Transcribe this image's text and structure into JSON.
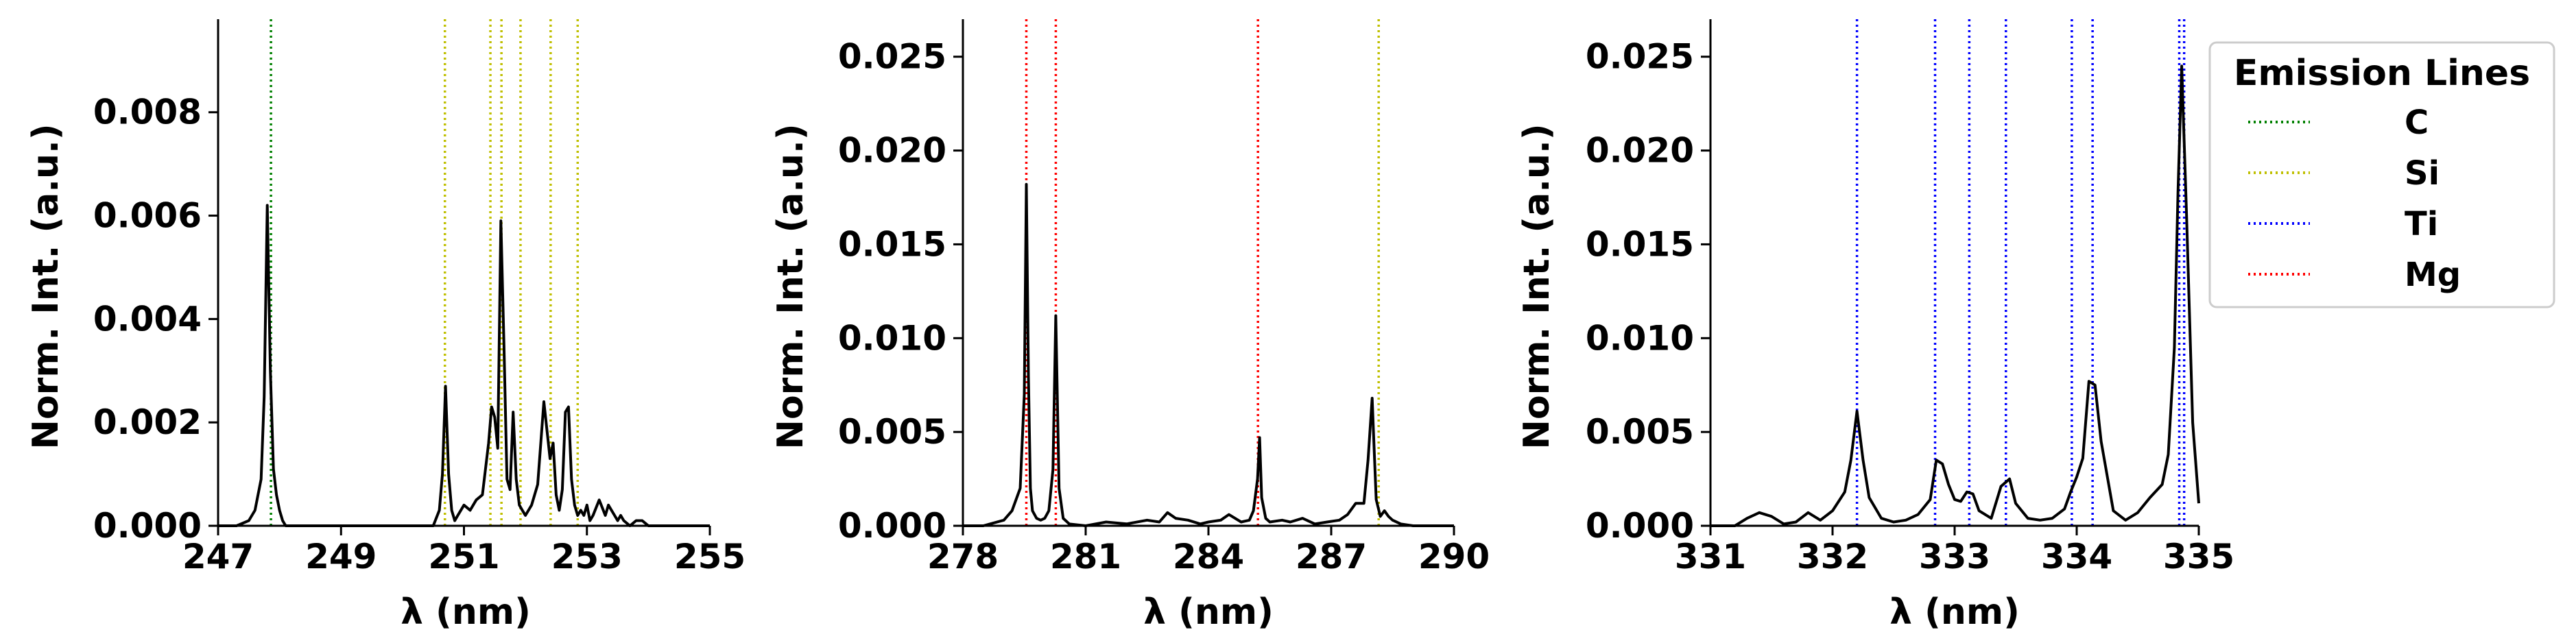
{
  "chart_data": [
    {
      "type": "line",
      "xlabel": "λ (nm)",
      "ylabel": "Norm. Int. (a.u.)",
      "xlim": [
        247,
        255
      ],
      "ylim": [
        0,
        0.0098
      ],
      "xticks": [
        "247",
        "249",
        "251",
        "253",
        "255"
      ],
      "yticks": [
        "0.000",
        "0.002",
        "0.004",
        "0.006",
        "0.008"
      ],
      "series": [
        {
          "x": [
            247.0,
            247.3,
            247.5,
            247.6,
            247.7,
            247.75,
            247.8,
            247.85,
            247.9,
            247.95,
            248.0,
            248.05,
            248.1,
            248.2,
            248.3,
            248.5,
            249.0,
            249.5,
            250.0,
            250.5,
            250.6,
            250.65,
            250.7,
            250.75,
            250.8,
            250.85,
            250.9,
            251.0,
            251.1,
            251.2,
            251.3,
            251.4,
            251.45,
            251.5,
            251.55,
            251.6,
            251.65,
            251.7,
            251.75,
            251.8,
            251.85,
            251.9,
            251.95,
            252.0,
            252.05,
            252.1,
            252.2,
            252.3,
            252.4,
            252.45,
            252.5,
            252.55,
            252.6,
            252.65,
            252.7,
            252.75,
            252.8,
            252.85,
            252.9,
            252.95,
            253.0,
            253.05,
            253.1,
            253.2,
            253.3,
            253.35,
            253.4,
            253.45,
            253.5,
            253.55,
            253.6,
            253.7,
            253.8,
            253.9,
            254.0,
            254.1,
            254.2,
            254.3,
            255.0
          ],
          "y": [
            0.0,
            0.0,
            0.0001,
            0.0003,
            0.0009,
            0.0025,
            0.0062,
            0.003,
            0.0011,
            0.0006,
            0.0003,
            0.0001,
            0.0,
            0.0,
            0.0,
            0.0,
            0.0,
            0.0,
            0.0,
            0.0,
            0.0003,
            0.001,
            0.0027,
            0.001,
            0.0003,
            0.0001,
            0.0002,
            0.0004,
            0.0003,
            0.0005,
            0.0006,
            0.0016,
            0.0023,
            0.0021,
            0.0015,
            0.0059,
            0.0035,
            0.0009,
            0.0007,
            0.0022,
            0.0009,
            0.0004,
            0.0003,
            0.0002,
            0.0003,
            0.0004,
            0.0008,
            0.0024,
            0.0013,
            0.0016,
            0.0006,
            0.0003,
            0.0007,
            0.0022,
            0.0023,
            0.0009,
            0.0004,
            0.0002,
            0.0003,
            0.0002,
            0.0004,
            0.0001,
            0.0002,
            0.0005,
            0.0002,
            0.0004,
            0.0003,
            0.0002,
            0.0001,
            0.0002,
            0.0001,
            0.0,
            0.0001,
            0.0001,
            0.0,
            0.0,
            0.0,
            0.0,
            0.0
          ]
        }
      ],
      "lines": [
        {
          "x": 247.86,
          "element": "C"
        },
        {
          "x": 250.69,
          "element": "Si"
        },
        {
          "x": 251.43,
          "element": "Si"
        },
        {
          "x": 251.61,
          "element": "Si"
        },
        {
          "x": 251.92,
          "element": "Si"
        },
        {
          "x": 252.41,
          "element": "Si"
        },
        {
          "x": 252.85,
          "element": "Si"
        }
      ]
    },
    {
      "type": "line",
      "xlabel": "λ (nm)",
      "ylabel": "Norm. Int. (a.u.)",
      "xlim": [
        278,
        290
      ],
      "ylim": [
        0,
        0.027
      ],
      "xticks": [
        "278",
        "281",
        "284",
        "287",
        "290"
      ],
      "yticks": [
        "0.000",
        "0.005",
        "0.010",
        "0.015",
        "0.020",
        "0.025"
      ],
      "series": [
        {
          "x": [
            278.0,
            278.5,
            279.0,
            279.2,
            279.4,
            279.5,
            279.55,
            279.6,
            279.65,
            279.7,
            279.8,
            279.9,
            280.0,
            280.1,
            280.2,
            280.27,
            280.35,
            280.45,
            280.6,
            281.0,
            281.5,
            282.0,
            282.5,
            282.8,
            283.0,
            283.2,
            283.5,
            283.8,
            284.0,
            284.3,
            284.5,
            284.8,
            285.0,
            285.1,
            285.2,
            285.25,
            285.3,
            285.4,
            285.5,
            285.8,
            286.0,
            286.3,
            286.6,
            286.9,
            287.2,
            287.4,
            287.6,
            287.8,
            287.9,
            288.0,
            288.05,
            288.1,
            288.2,
            288.3,
            288.4,
            288.5,
            288.7,
            289.0,
            290.0
          ],
          "y": [
            0.0,
            0.0,
            0.0003,
            0.0008,
            0.002,
            0.007,
            0.0182,
            0.008,
            0.002,
            0.0008,
            0.0004,
            0.0003,
            0.0004,
            0.0008,
            0.003,
            0.0112,
            0.002,
            0.0004,
            0.0001,
            0.0,
            0.0002,
            0.0001,
            0.0003,
            0.0002,
            0.0007,
            0.0004,
            0.0003,
            0.0001,
            0.0002,
            0.0003,
            0.0006,
            0.0002,
            0.0003,
            0.0008,
            0.0025,
            0.0047,
            0.0015,
            0.0004,
            0.0002,
            0.0003,
            0.0002,
            0.0004,
            0.0001,
            0.0002,
            0.0003,
            0.0006,
            0.0012,
            0.0012,
            0.0035,
            0.0068,
            0.004,
            0.0014,
            0.0005,
            0.0008,
            0.0005,
            0.0003,
            0.0001,
            0.0,
            0.0
          ]
        }
      ],
      "lines": [
        {
          "x": 279.55,
          "element": "Mg"
        },
        {
          "x": 280.27,
          "element": "Mg"
        },
        {
          "x": 285.21,
          "element": "Mg"
        },
        {
          "x": 288.16,
          "element": "Si"
        }
      ]
    },
    {
      "type": "line",
      "xlabel": "λ (nm)",
      "ylabel": "Norm. Int. (a.u.)",
      "xlim": [
        331,
        335
      ],
      "ylim": [
        0,
        0.027
      ],
      "xticks": [
        "331",
        "332",
        "333",
        "334",
        "335"
      ],
      "yticks": [
        "0.000",
        "0.005",
        "0.010",
        "0.015",
        "0.020",
        "0.025"
      ],
      "legend": {
        "title": "Emission Lines",
        "position": "upper-right-outside",
        "entries": [
          {
            "label": "C",
            "color": "#008000"
          },
          {
            "label": "Si",
            "color": "#BFBF00"
          },
          {
            "label": "Ti",
            "color": "#0000FF"
          },
          {
            "label": "Mg",
            "color": "#FF0000"
          }
        ]
      },
      "series": [
        {
          "x": [
            331.0,
            331.2,
            331.3,
            331.4,
            331.5,
            331.6,
            331.7,
            331.8,
            331.85,
            331.9,
            332.0,
            332.1,
            332.15,
            332.2,
            332.25,
            332.3,
            332.4,
            332.5,
            332.6,
            332.7,
            332.8,
            332.85,
            332.9,
            332.95,
            333.0,
            333.05,
            333.1,
            333.15,
            333.2,
            333.3,
            333.38,
            333.45,
            333.5,
            333.6,
            333.7,
            333.8,
            333.9,
            333.95,
            334.0,
            334.05,
            334.1,
            334.15,
            334.2,
            334.3,
            334.4,
            334.5,
            334.6,
            334.7,
            334.75,
            334.8,
            334.83,
            334.86,
            334.9,
            334.95,
            335.0
          ],
          "y": [
            0.0,
            0.0,
            0.0004,
            0.0007,
            0.0005,
            0.0001,
            0.0002,
            0.0007,
            0.0005,
            0.0003,
            0.0008,
            0.0018,
            0.0035,
            0.0061,
            0.0035,
            0.0015,
            0.0004,
            0.0002,
            0.0003,
            0.0006,
            0.0014,
            0.0035,
            0.0033,
            0.0022,
            0.0014,
            0.0013,
            0.0018,
            0.0017,
            0.0008,
            0.0004,
            0.0021,
            0.0025,
            0.0012,
            0.0004,
            0.0003,
            0.0004,
            0.0009,
            0.0018,
            0.0026,
            0.0036,
            0.0077,
            0.0075,
            0.0045,
            0.0008,
            0.0003,
            0.0007,
            0.0015,
            0.0022,
            0.0038,
            0.0095,
            0.0178,
            0.0245,
            0.0165,
            0.0055,
            0.0012
          ]
        }
      ],
      "lines": [
        {
          "x": 332.2,
          "element": "Ti"
        },
        {
          "x": 332.84,
          "element": "Ti"
        },
        {
          "x": 333.12,
          "element": "Ti"
        },
        {
          "x": 333.42,
          "element": "Ti"
        },
        {
          "x": 333.96,
          "element": "Ti"
        },
        {
          "x": 334.13,
          "element": "Ti"
        },
        {
          "x": 334.84,
          "element": "Ti"
        },
        {
          "x": 334.88,
          "element": "Ti"
        }
      ]
    }
  ]
}
